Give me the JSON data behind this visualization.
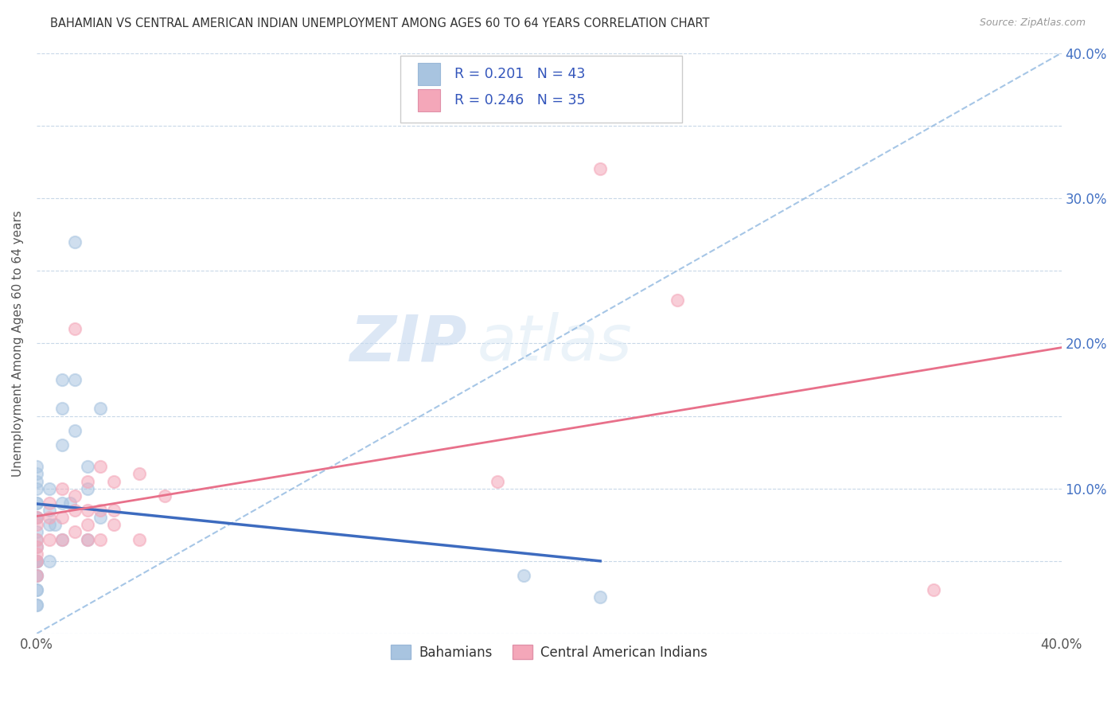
{
  "title": "BAHAMIAN VS CENTRAL AMERICAN INDIAN UNEMPLOYMENT AMONG AGES 60 TO 64 YEARS CORRELATION CHART",
  "source": "Source: ZipAtlas.com",
  "ylabel": "Unemployment Among Ages 60 to 64 years",
  "xlim": [
    0.0,
    0.4
  ],
  "ylim": [
    0.0,
    0.4
  ],
  "x_ticks": [
    0.0,
    0.05,
    0.1,
    0.15,
    0.2,
    0.25,
    0.3,
    0.35,
    0.4
  ],
  "y_ticks": [
    0.0,
    0.05,
    0.1,
    0.15,
    0.2,
    0.25,
    0.3,
    0.35,
    0.4
  ],
  "y_tick_labels_right": [
    "",
    "",
    "10.0%",
    "",
    "20.0%",
    "",
    "30.0%",
    "",
    "40.0%"
  ],
  "bahamian_color": "#a8c4e0",
  "central_color": "#f4a7b9",
  "bahamian_R": 0.201,
  "bahamian_N": 43,
  "central_R": 0.246,
  "central_N": 35,
  "bahamian_line_color": "#3d6bbf",
  "central_line_color": "#e8708a",
  "diagonal_line_color": "#90b8e0",
  "legend_label_1": "Bahamians",
  "legend_label_2": "Central American Indians",
  "watermark_zip": "ZIP",
  "watermark_atlas": "atlas",
  "bahamian_x": [
    0.0,
    0.0,
    0.0,
    0.0,
    0.0,
    0.0,
    0.0,
    0.0,
    0.0,
    0.0,
    0.0,
    0.0,
    0.0,
    0.0,
    0.0,
    0.0,
    0.0,
    0.0,
    0.0,
    0.0,
    0.005,
    0.005,
    0.005,
    0.005,
    0.007,
    0.01,
    0.01,
    0.01,
    0.01,
    0.01,
    0.013,
    0.015,
    0.015,
    0.015,
    0.02,
    0.02,
    0.02,
    0.025,
    0.025,
    0.19,
    0.22
  ],
  "bahamian_y": [
    0.02,
    0.02,
    0.03,
    0.03,
    0.04,
    0.04,
    0.05,
    0.05,
    0.05,
    0.06,
    0.065,
    0.07,
    0.08,
    0.08,
    0.09,
    0.09,
    0.1,
    0.105,
    0.11,
    0.115,
    0.05,
    0.075,
    0.085,
    0.1,
    0.075,
    0.065,
    0.09,
    0.13,
    0.155,
    0.175,
    0.09,
    0.14,
    0.175,
    0.27,
    0.065,
    0.1,
    0.115,
    0.08,
    0.155,
    0.04,
    0.025
  ],
  "central_x": [
    0.0,
    0.0,
    0.0,
    0.0,
    0.0,
    0.0,
    0.0,
    0.005,
    0.005,
    0.005,
    0.01,
    0.01,
    0.01,
    0.015,
    0.015,
    0.015,
    0.015,
    0.02,
    0.02,
    0.02,
    0.02,
    0.025,
    0.025,
    0.025,
    0.03,
    0.03,
    0.03,
    0.04,
    0.04,
    0.05,
    0.18,
    0.22,
    0.25,
    0.35
  ],
  "central_y": [
    0.04,
    0.05,
    0.055,
    0.06,
    0.065,
    0.075,
    0.08,
    0.065,
    0.08,
    0.09,
    0.065,
    0.08,
    0.1,
    0.07,
    0.085,
    0.095,
    0.21,
    0.065,
    0.075,
    0.085,
    0.105,
    0.065,
    0.085,
    0.115,
    0.075,
    0.085,
    0.105,
    0.065,
    0.11,
    0.095,
    0.105,
    0.32,
    0.23,
    0.03
  ]
}
